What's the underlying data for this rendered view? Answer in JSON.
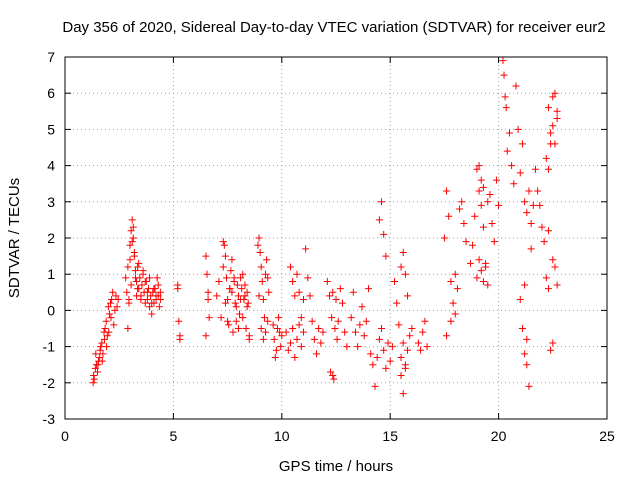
{
  "chart_data": {
    "type": "scatter",
    "title": "Day 356 of 2020, Sidereal Day-to-day VTEC variation (SDTVAR) for receiver eur2",
    "xlabel": "GPS time / hours",
    "ylabel": "SDTVAR / TECUs",
    "xlim": [
      0,
      25
    ],
    "ylim": [
      -3,
      7
    ],
    "xticks": [
      0,
      5,
      10,
      15,
      20,
      25
    ],
    "yticks": [
      -3,
      -2,
      -1,
      0,
      1,
      2,
      3,
      4,
      5,
      6,
      7
    ],
    "grid": true,
    "marker": "plus",
    "color": "#ff0000",
    "series": [
      {
        "name": "eur2",
        "x": [
          1.3,
          1.35,
          1.4,
          1.45,
          1.5,
          1.55,
          1.6,
          1.65,
          1.7,
          1.75,
          1.8,
          1.85,
          1.9,
          1.95,
          2.0,
          2.05,
          2.1,
          2.15,
          2.2,
          2.25,
          2.3,
          2.35,
          2.4,
          2.45,
          1.32,
          1.42,
          1.52,
          1.62,
          1.72,
          1.82,
          1.92,
          2.02,
          2.12,
          2.8,
          2.85,
          2.9,
          2.95,
          3.0,
          3.05,
          3.1,
          3.15,
          3.2,
          3.25,
          3.3,
          3.35,
          3.4,
          3.45,
          3.5,
          3.55,
          3.6,
          3.65,
          3.7,
          3.75,
          3.8,
          3.85,
          3.9,
          3.95,
          4.0,
          4.05,
          4.1,
          4.15,
          4.2,
          4.25,
          4.3,
          4.35,
          4.4,
          2.9,
          2.95,
          3.0,
          3.05,
          3.1,
          3.15,
          3.2,
          3.25,
          3.3,
          3.35,
          3.4,
          3.5,
          3.6,
          3.7,
          3.8,
          3.9,
          4.0,
          4.1,
          4.2,
          4.3,
          4.4,
          5.2,
          5.25,
          5.3,
          5.2,
          5.3,
          6.5,
          6.55,
          6.6,
          6.65,
          6.5,
          6.6,
          7.0,
          7.1,
          7.2,
          7.3,
          7.35,
          7.4,
          7.45,
          7.5,
          7.55,
          7.6,
          7.65,
          7.7,
          7.75,
          7.8,
          7.85,
          7.9,
          7.95,
          8.0,
          8.05,
          8.1,
          8.15,
          8.2,
          8.25,
          8.3,
          8.35,
          8.4,
          8.45,
          8.5,
          7.3,
          7.4,
          7.5,
          7.6,
          7.7,
          7.8,
          7.9,
          8.0,
          8.1,
          8.2,
          8.3,
          8.4,
          8.5,
          8.9,
          8.95,
          9.0,
          9.05,
          9.1,
          9.15,
          9.2,
          9.25,
          9.3,
          9.35,
          9.4,
          8.95,
          9.05,
          9.15,
          9.25,
          9.35,
          9.6,
          9.65,
          9.7,
          9.75,
          9.8,
          9.85,
          9.9,
          9.95,
          10.0,
          10.2,
          10.3,
          10.4,
          10.5,
          10.6,
          10.7,
          10.8,
          10.9,
          11.0,
          10.4,
          10.5,
          10.6,
          10.7,
          10.8,
          10.9,
          11.0,
          11.1,
          11.2,
          11.3,
          11.4,
          11.5,
          11.6,
          11.7,
          11.8,
          11.9,
          12.1,
          12.2,
          12.3,
          12.35,
          12.4,
          12.45,
          12.5,
          12.55,
          12.6,
          12.7,
          12.8,
          12.9,
          13.0,
          12.25,
          12.35,
          13.2,
          13.3,
          13.4,
          13.5,
          13.6,
          13.7,
          13.8,
          13.9,
          14.0,
          14.1,
          14.2,
          14.3,
          14.4,
          14.5,
          14.6,
          14.7,
          14.8,
          14.9,
          15.0,
          14.5,
          14.6,
          14.7,
          14.8,
          15.1,
          15.2,
          15.3,
          15.4,
          15.5,
          15.6,
          15.7,
          15.8,
          15.9,
          16.0,
          15.5,
          15.6,
          15.7,
          15.8,
          15.5,
          15.6,
          15.7,
          16.3,
          16.4,
          16.5,
          16.6,
          16.7,
          17.5,
          17.6,
          17.7,
          17.8,
          17.9,
          18.0,
          18.1,
          18.2,
          18.3,
          18.4,
          18.5,
          17.6,
          17.8,
          18.0,
          18.7,
          18.8,
          18.9,
          19.0,
          19.1,
          19.2,
          19.3,
          19.4,
          19.5,
          19.6,
          19.7,
          19.8,
          19.9,
          20.0,
          19.0,
          19.1,
          19.2,
          19.3,
          19.4,
          19.5,
          19.1,
          19.2,
          19.3,
          20.2,
          20.25,
          20.3,
          20.35,
          20.4,
          20.5,
          20.6,
          20.7,
          20.8,
          20.9,
          21.0,
          21.1,
          21.2,
          21.3,
          21.4,
          21.5,
          21.6,
          21.7,
          21.0,
          21.1,
          21.2,
          21.3,
          21.4,
          21.5,
          21.3,
          21.2,
          21.8,
          21.9,
          22.0,
          22.1,
          22.2,
          22.3,
          22.4,
          22.5,
          22.6,
          22.7,
          22.3,
          22.4,
          22.5,
          22.6,
          22.7,
          22.2,
          22.3,
          22.4,
          22.5,
          22.6,
          22.7,
          22.3,
          22.5
        ],
        "y": [
          -2.0,
          -1.9,
          -1.6,
          -1.5,
          -1.7,
          -1.4,
          -1.3,
          -1.0,
          -0.9,
          -1.2,
          -0.6,
          -0.5,
          -0.3,
          -0.7,
          0.1,
          -0.1,
          0.2,
          0.3,
          0.5,
          -0.4,
          0.0,
          0.4,
          0.1,
          0.3,
          -1.8,
          -1.2,
          -1.5,
          -1.1,
          -1.4,
          -0.8,
          -1.0,
          -0.6,
          -0.2,
          0.9,
          0.5,
          1.2,
          0.3,
          1.8,
          2.2,
          2.5,
          2.0,
          1.6,
          1.1,
          0.8,
          0.6,
          1.3,
          0.9,
          0.4,
          0.7,
          1.0,
          0.5,
          0.2,
          0.8,
          0.3,
          0.6,
          0.1,
          0.4,
          -0.1,
          0.5,
          0.2,
          0.6,
          0.3,
          0.9,
          0.4,
          0.1,
          0.5,
          -0.5,
          0.2,
          1.4,
          0.7,
          1.9,
          2.3,
          1.5,
          0.9,
          0.4,
          1.2,
          0.6,
          0.3,
          1.1,
          0.8,
          0.5,
          0.9,
          0.2,
          0.6,
          0.4,
          0.7,
          0.3,
          0.6,
          -0.3,
          -0.8,
          0.7,
          -0.7,
          1.5,
          1.0,
          0.5,
          -0.2,
          -0.7,
          0.3,
          0.4,
          0.8,
          -0.2,
          1.2,
          1.8,
          1.5,
          0.9,
          0.3,
          -0.4,
          0.6,
          1.1,
          0.5,
          -0.6,
          0.8,
          0.2,
          -0.3,
          0.7,
          0.4,
          -0.1,
          0.9,
          0.6,
          1.0,
          0.3,
          0.7,
          -0.5,
          0.5,
          0.2,
          -0.8,
          1.9,
          0.2,
          -0.3,
          0.6,
          1.4,
          0.9,
          0.1,
          -0.5,
          0.3,
          -0.2,
          0.4,
          0.1,
          -0.7,
          1.8,
          2.0,
          1.6,
          1.2,
          0.8,
          0.3,
          -0.2,
          -0.6,
          1.4,
          0.9,
          0.5,
          0.4,
          -0.5,
          -0.8,
          1.0,
          -0.3,
          -0.4,
          -0.8,
          -1.3,
          -1.1,
          -0.5,
          -0.2,
          -0.6,
          -1.0,
          -0.7,
          -0.6,
          -1.1,
          -0.9,
          -0.5,
          -1.3,
          -0.8,
          -0.4,
          -1.0,
          -0.6,
          1.2,
          0.8,
          0.4,
          1.0,
          0.5,
          -0.2,
          0.3,
          1.7,
          0.9,
          0.4,
          -0.3,
          -0.8,
          -1.2,
          -0.5,
          -0.9,
          -0.6,
          0.8,
          0.4,
          -0.2,
          -1.8,
          -1.9,
          -0.5,
          0.3,
          -0.8,
          -0.3,
          0.6,
          0.2,
          -0.6,
          -1.0,
          -1.7,
          0.5,
          -0.2,
          0.5,
          -0.6,
          -1.0,
          -0.4,
          0.1,
          -0.7,
          -0.3,
          0.6,
          -1.2,
          -1.5,
          -2.1,
          -1.3,
          -0.8,
          -0.5,
          -1.1,
          -1.6,
          -0.9,
          -1.4,
          2.5,
          3.0,
          2.1,
          1.5,
          -1.0,
          0.8,
          0.2,
          -0.4,
          -1.8,
          -2.3,
          -1.5,
          -1.1,
          -0.7,
          -0.5,
          1.2,
          1.6,
          1.0,
          0.4,
          -1.3,
          -0.9,
          -1.6,
          -0.9,
          -1.1,
          -0.6,
          -0.3,
          -1.0,
          2.0,
          3.3,
          2.6,
          -0.3,
          0.2,
          1.0,
          0.6,
          2.8,
          3.0,
          2.4,
          1.9,
          -0.7,
          0.8,
          -0.1,
          1.3,
          1.8,
          2.6,
          3.9,
          3.3,
          2.9,
          2.3,
          1.2,
          0.7,
          3.2,
          2.4,
          1.9,
          3.6,
          2.9,
          0.9,
          1.4,
          1.1,
          0.8,
          1.3,
          3.0,
          4.0,
          3.6,
          3.4,
          6.9,
          6.5,
          5.9,
          5.6,
          4.4,
          4.9,
          4.0,
          3.5,
          6.2,
          5.0,
          3.8,
          4.6,
          3.0,
          2.7,
          3.3,
          2.4,
          2.9,
          3.9,
          0.3,
          -0.5,
          -1.2,
          -1.5,
          -2.1,
          1.7,
          -0.8,
          0.7,
          3.3,
          2.9,
          2.3,
          1.9,
          0.9,
          0.6,
          -1.1,
          -0.9,
          1.2,
          0.7,
          5.6,
          4.9,
          5.9,
          6.0,
          5.3,
          4.2,
          3.9,
          4.6,
          5.1,
          4.6,
          5.5,
          2.2,
          1.4
        ]
      }
    ]
  }
}
